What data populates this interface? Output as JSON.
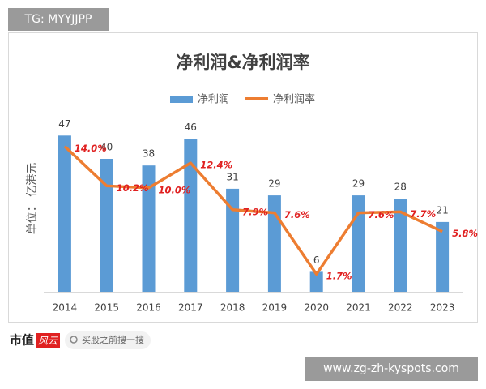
{
  "chart_data": {
    "type": "bar-line",
    "title": "净利润&净利润率",
    "y_label": "单位：  亿港元",
    "categories": [
      "2014",
      "2015",
      "2016",
      "2017",
      "2018",
      "2019",
      "2020",
      "2021",
      "2022",
      "2023"
    ],
    "series": [
      {
        "name": "净利润",
        "type": "bar",
        "color": "#5b9bd5",
        "values": [
          47,
          40,
          38,
          46,
          31,
          29,
          6,
          29,
          28,
          21
        ]
      },
      {
        "name": "净利润率",
        "type": "line",
        "axis": "y2",
        "color": "#ed7d31",
        "label_color": "#e02020",
        "values": [
          14.0,
          10.2,
          10.0,
          12.4,
          7.9,
          7.6,
          1.7,
          7.6,
          7.7,
          5.8
        ],
        "value_labels": [
          "14.0%",
          "10.2%",
          "10.0%",
          "12.4%",
          "7.9%",
          "7.6%",
          "1.7%",
          "7.6%",
          "7.7%",
          "5.8%"
        ]
      }
    ],
    "ylim": [
      0,
      50
    ],
    "y2lim": [
      0,
      16
    ],
    "grid": false,
    "legend": "top"
  },
  "watermarks": {
    "top_left": "TG: MYYJJPP",
    "logo": "市值",
    "logo_badge": "风云",
    "search": "买股之前搜一搜",
    "url": "www.zg-zh-kyspots.com"
  }
}
